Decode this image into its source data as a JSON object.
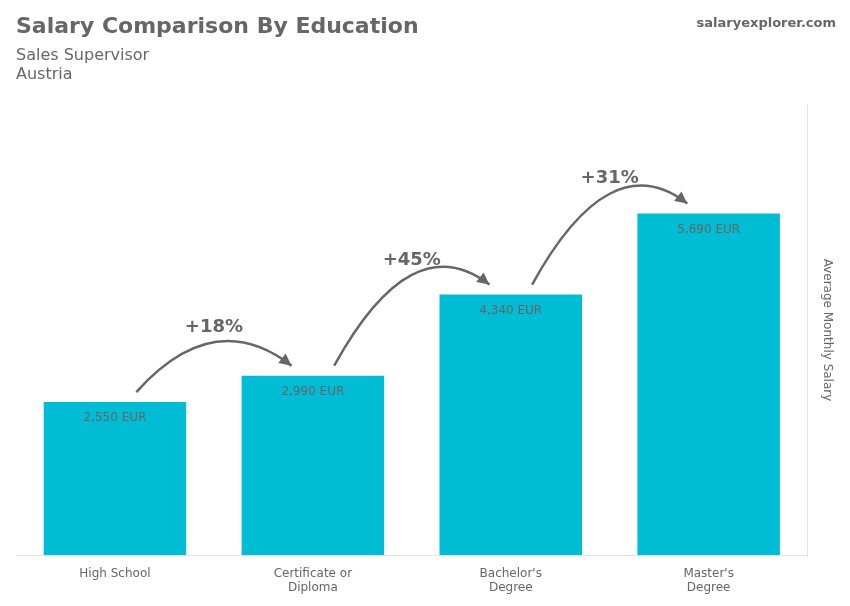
{
  "chart_data": {
    "type": "bar",
    "title": "Salary Comparison By Education",
    "subtitle": "Sales Supervisor",
    "ylabel": "Average Monthly Salary",
    "categories": [
      "High School",
      "Certificate or\nDiploma",
      "Bachelor's\nDegree",
      "Master's\nDegree"
    ],
    "values": [
      2550,
      2990,
      4340,
      5690
    ],
    "value_labels": [
      "2,550 EUR",
      "2,990 EUR",
      "4,340 EUR",
      "5,690 EUR"
    ],
    "data_labels": true,
    "color": "#00bcd4",
    "ylim": [
      0,
      7500
    ],
    "grid": false,
    "tick_labels": "x",
    "annotations": {
      "country": "Austria",
      "source": "salaryexplorer.com",
      "changes": [
        "+18%",
        "+45%",
        "+31%"
      ]
    }
  }
}
